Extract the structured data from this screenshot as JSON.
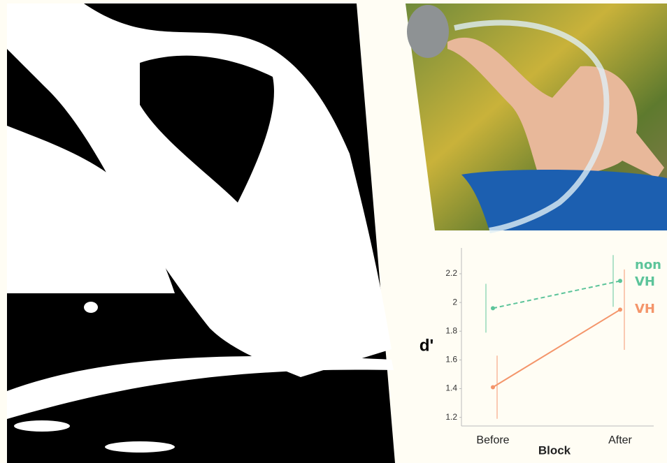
{
  "chart_data": {
    "type": "line",
    "x_label": "Block",
    "y_label": "d'",
    "categories": [
      "Before",
      "After"
    ],
    "series": [
      {
        "name": "non VH",
        "color": "#5cc49a",
        "dashed": true,
        "values": [
          1.96,
          2.15
        ],
        "errors": [
          0.17,
          0.18
        ]
      },
      {
        "name": "VH",
        "color": "#f4956a",
        "dashed": false,
        "values": [
          1.41,
          1.95
        ],
        "errors": [
          0.22,
          0.28
        ]
      }
    ],
    "ylim": [
      1.14,
      2.38
    ],
    "yticks": [
      1.2,
      1.4,
      1.6,
      1.8,
      2.0,
      2.2
    ]
  }
}
